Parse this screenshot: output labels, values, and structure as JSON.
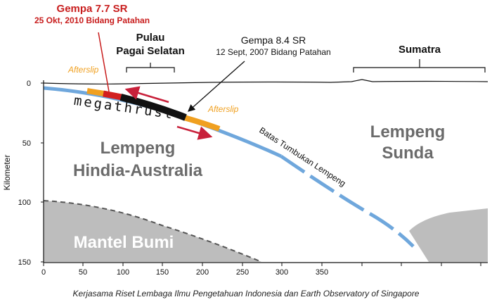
{
  "axes": {
    "y_label": "Kilometer",
    "y_ticks": [
      "0",
      "50",
      "100",
      "150"
    ],
    "x_ticks": [
      "0",
      "50",
      "100",
      "150",
      "200",
      "250",
      "300",
      "350"
    ]
  },
  "labels": {
    "quake_2010_title": "Gempa 7.7 SR",
    "quake_2010_sub": "25 Okt, 2010 Bidang Patahan",
    "island_line1": "Pulau",
    "island_line2": "Pagai Selatan",
    "quake_2007_title": "Gempa 8.4 SR",
    "quake_2007_sub": "12 Sept, 2007 Bidang Patahan",
    "sumatra": "Sumatra",
    "afterslip_left": "Afterslip",
    "afterslip_right": "Afterslip",
    "megathrust": "megathrust",
    "plate_indo_line1": "Lempeng",
    "plate_indo_line2": "Hindia-Australia",
    "plate_sunda_line1": "Lempeng",
    "plate_sunda_line2": "Sunda",
    "boundary": "Batas Tumbukan Lempeng",
    "mantle": "Mantel Bumi"
  },
  "caption": "Kerjasama Riset Lembaga Ilmu Pengetahuan Indonesia dan Earth Observatory of Singapore",
  "colors": {
    "slab_blue": "#6fa7dc",
    "afterslip_orange": "#f0a020",
    "rupture_red": "#d21f1f",
    "rupture_black": "#111111",
    "arrow_red": "#c8203a",
    "mantle_gray": "#bdbdbd",
    "plate_text_gray": "#6b6b6b"
  }
}
